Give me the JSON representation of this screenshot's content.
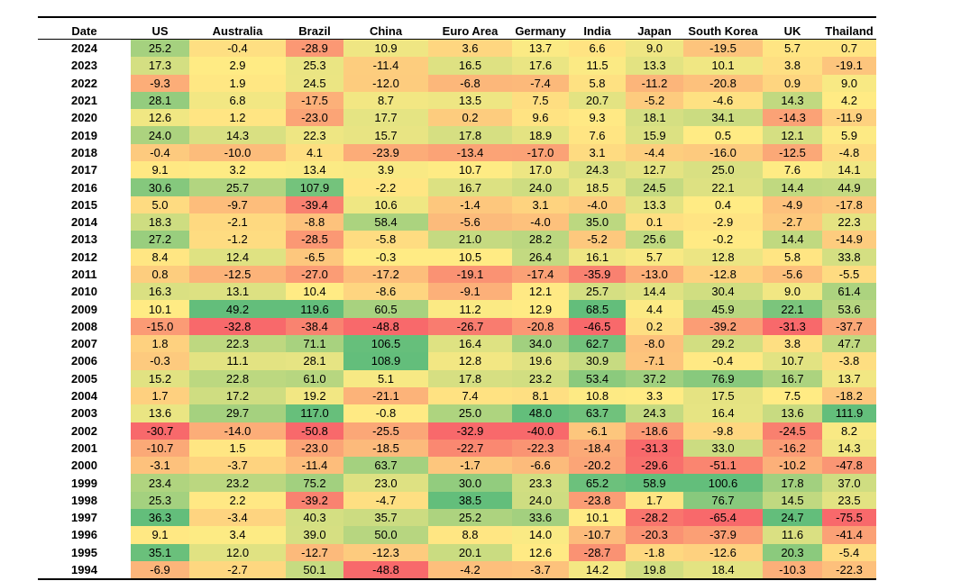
{
  "chart_data": {
    "type": "table",
    "title": "",
    "columns": [
      "Date",
      "US",
      "Australia",
      "Brazil",
      "China",
      "Euro Area",
      "Germany",
      "India",
      "Japan",
      "South Korea",
      "UK",
      "Thailand"
    ],
    "rows": [
      {
        "date": "2024",
        "values": [
          "25.2",
          "-0.4",
          "-28.9",
          "10.9",
          "3.6",
          "13.7",
          "6.6",
          "9.0",
          "-19.5",
          "5.7",
          "0.7"
        ]
      },
      {
        "date": "2023",
        "values": [
          "17.3",
          "2.9",
          "25.3",
          "-11.4",
          "16.5",
          "17.6",
          "11.5",
          "13.3",
          "10.1",
          "3.8",
          "-19.1"
        ]
      },
      {
        "date": "2022",
        "values": [
          "-9.3",
          "1.9",
          "24.5",
          "-12.0",
          "-6.8",
          "-7.4",
          "5.8",
          "-11.2",
          "-20.8",
          "0.9",
          "9.0"
        ]
      },
      {
        "date": "2021",
        "values": [
          "28.1",
          "6.8",
          "-17.5",
          "8.7",
          "13.5",
          "7.5",
          "20.7",
          "-5.2",
          "-4.6",
          "14.3",
          "4.2"
        ]
      },
      {
        "date": "2020",
        "values": [
          "12.6",
          "1.2",
          "-23.0",
          "17.7",
          "0.2",
          "9.6",
          "9.3",
          "18.1",
          "34.1",
          "-14.3",
          "-11.9"
        ]
      },
      {
        "date": "2019",
        "values": [
          "24.0",
          "14.3",
          "22.3",
          "15.7",
          "17.8",
          "18.9",
          "7.6",
          "15.9",
          "0.5",
          "12.1",
          "5.9"
        ]
      },
      {
        "date": "2018",
        "values": [
          "-0.4",
          "-10.0",
          "4.1",
          "-23.9",
          "-13.4",
          "-17.0",
          "3.1",
          "-4.4",
          "-16.0",
          "-12.5",
          "-4.8"
        ]
      },
      {
        "date": "2017",
        "values": [
          "9.1",
          "3.2",
          "13.4",
          "3.9",
          "10.7",
          "17.0",
          "24.3",
          "12.7",
          "25.0",
          "7.6",
          "14.1"
        ]
      },
      {
        "date": "2016",
        "values": [
          "30.6",
          "25.7",
          "107.9",
          "-2.2",
          "16.7",
          "24.0",
          "18.5",
          "24.5",
          "22.1",
          "14.4",
          "44.9"
        ]
      },
      {
        "date": "2015",
        "values": [
          "5.0",
          "-9.7",
          "-39.4",
          "10.6",
          "-1.4",
          "3.1",
          "-4.0",
          "13.3",
          "0.4",
          "-4.9",
          "-17.8"
        ]
      },
      {
        "date": "2014",
        "values": [
          "18.3",
          "-2.1",
          "-8.8",
          "58.4",
          "-5.6",
          "-4.0",
          "35.0",
          "0.1",
          "-2.9",
          "-2.7",
          "22.3"
        ]
      },
      {
        "date": "2013",
        "values": [
          "27.2",
          "-1.2",
          "-28.5",
          "-5.8",
          "21.0",
          "28.2",
          "-5.2",
          "25.6",
          "-0.2",
          "14.4",
          "-14.9"
        ]
      },
      {
        "date": "2012",
        "values": [
          "8.4",
          "12.4",
          "-6.5",
          "-0.3",
          "10.5",
          "26.4",
          "16.1",
          "5.7",
          "12.8",
          "5.8",
          "33.8"
        ]
      },
      {
        "date": "2011",
        "values": [
          "0.8",
          "-12.5",
          "-27.0",
          "-17.2",
          "-19.1",
          "-17.4",
          "-35.9",
          "-13.0",
          "-12.8",
          "-5.6",
          "-5.5"
        ]
      },
      {
        "date": "2010",
        "values": [
          "16.3",
          "13.1",
          "10.4",
          "-8.6",
          "-9.1",
          "12.1",
          "25.7",
          "14.4",
          "30.4",
          "9.0",
          "61.4"
        ]
      },
      {
        "date": "2009",
        "values": [
          "10.1",
          "49.2",
          "119.6",
          "60.5",
          "11.2",
          "12.9",
          "68.5",
          "4.4",
          "45.9",
          "22.1",
          "53.6"
        ]
      },
      {
        "date": "2008",
        "values": [
          "-15.0",
          "-32.8",
          "-38.4",
          "-48.8",
          "-26.7",
          "-20.8",
          "-46.5",
          "0.2",
          "-39.2",
          "-31.3",
          "-37.7"
        ]
      },
      {
        "date": "2007",
        "values": [
          "1.8",
          "22.3",
          "71.1",
          "106.5",
          "16.4",
          "34.0",
          "62.7",
          "-8.0",
          "29.2",
          "3.8",
          "47.7"
        ]
      },
      {
        "date": "2006",
        "values": [
          "-0.3",
          "11.1",
          "28.1",
          "108.9",
          "12.8",
          "19.6",
          "30.9",
          "-7.1",
          "-0.4",
          "10.7",
          "-3.8"
        ]
      },
      {
        "date": "2005",
        "values": [
          "15.2",
          "22.8",
          "61.0",
          "5.1",
          "17.8",
          "23.2",
          "53.4",
          "37.2",
          "76.9",
          "16.7",
          "13.7"
        ]
      },
      {
        "date": "2004",
        "values": [
          "1.7",
          "17.2",
          "19.2",
          "-21.1",
          "7.4",
          "8.1",
          "10.8",
          "3.3",
          "17.5",
          "7.5",
          "-18.2"
        ]
      },
      {
        "date": "2003",
        "values": [
          "13.6",
          "29.7",
          "117.0",
          "-0.8",
          "25.0",
          "48.0",
          "63.7",
          "24.3",
          "16.4",
          "13.6",
          "111.9"
        ]
      },
      {
        "date": "2002",
        "values": [
          "-30.7",
          "-14.0",
          "-50.8",
          "-25.5",
          "-32.9",
          "-40.0",
          "-6.1",
          "-18.6",
          "-9.8",
          "-24.5",
          "8.2"
        ]
      },
      {
        "date": "2001",
        "values": [
          "-10.7",
          "1.5",
          "-23.0",
          "-18.5",
          "-22.7",
          "-22.3",
          "-18.4",
          "-31.3",
          "33.0",
          "-16.2",
          "14.3"
        ]
      },
      {
        "date": "2000",
        "values": [
          "-3.1",
          "-3.7",
          "-11.4",
          "63.7",
          "-1.7",
          "-6.6",
          "-20.2",
          "-29.6",
          "-51.1",
          "-10.2",
          "-47.8"
        ]
      },
      {
        "date": "1999",
        "values": [
          "23.4",
          "23.2",
          "75.2",
          "23.0",
          "30.0",
          "23.3",
          "65.2",
          "58.9",
          "100.6",
          "17.8",
          "37.0"
        ]
      },
      {
        "date": "1998",
        "values": [
          "25.3",
          "2.2",
          "-39.2",
          "-4.7",
          "38.5",
          "24.0",
          "-23.8",
          "1.7",
          "76.7",
          "14.5",
          "23.5"
        ]
      },
      {
        "date": "1997",
        "values": [
          "36.3",
          "-3.4",
          "40.3",
          "35.7",
          "25.2",
          "33.6",
          "10.1",
          "-28.2",
          "-65.4",
          "24.7",
          "-75.5"
        ]
      },
      {
        "date": "1996",
        "values": [
          "9.1",
          "3.4",
          "39.0",
          "50.0",
          "8.8",
          "14.0",
          "-10.7",
          "-20.3",
          "-37.9",
          "11.6",
          "-41.4"
        ]
      },
      {
        "date": "1995",
        "values": [
          "35.1",
          "12.0",
          "-12.7",
          "-12.3",
          "20.1",
          "12.6",
          "-28.7",
          "-1.8",
          "-12.6",
          "20.3",
          "-5.4"
        ]
      },
      {
        "date": "1994",
        "values": [
          "-6.9",
          "-2.7",
          "50.1",
          "-48.8",
          "-4.2",
          "-3.7",
          "14.2",
          "19.8",
          "18.4",
          "-10.3",
          "-22.3"
        ]
      }
    ],
    "colors": {
      "low": "#f8696b",
      "mid": "#ffeb84",
      "high": "#63be7b"
    },
    "color_scale": "per-column three-color scale: lowest red, middle yellow, highest green"
  }
}
